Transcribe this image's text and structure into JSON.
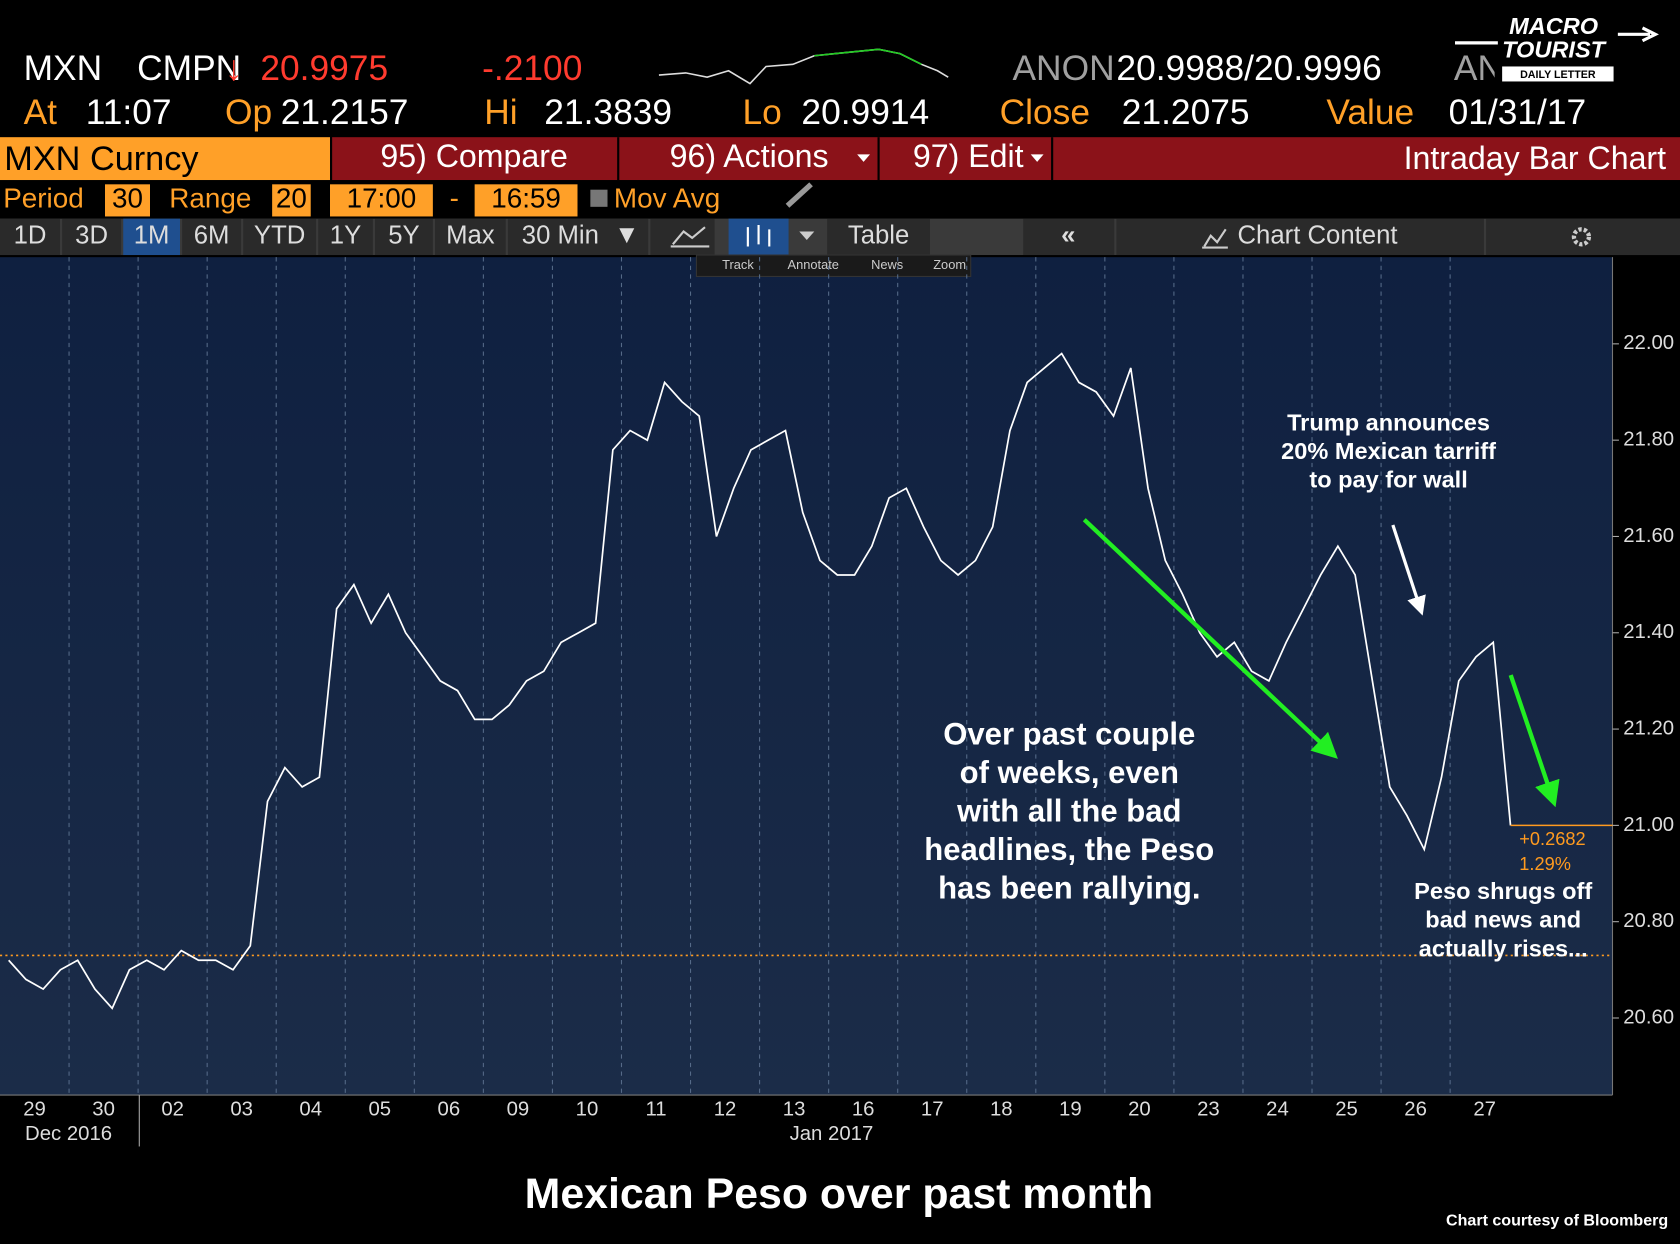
{
  "header": {
    "ticker": "MXN",
    "source": "CMPN",
    "arrow": "↓",
    "last": "20.9975",
    "change": "-.2100",
    "bid_source": "ANON",
    "bid_ask": "20.9988/20.9996",
    "ask_source": "ANON",
    "at_label": "At",
    "time": "11:07",
    "open_label": "Op",
    "open": "21.2157",
    "high_label": "Hi",
    "high": "21.3839",
    "low_label": "Lo",
    "low": "20.9914",
    "close_label": "Close",
    "close": "21.2075",
    "value_label": "Value",
    "value_date": "01/31/17"
  },
  "menu": {
    "security": "MXN Curncy",
    "items": [
      "95) Compare",
      "96) Actions",
      "97) Edit"
    ],
    "view": "Intraday Bar Chart"
  },
  "settings": {
    "period_label": "Period",
    "period": "30",
    "range_label": "Range",
    "range": "20",
    "start": "17:00",
    "separator": "-",
    "end": "16:59",
    "mov_avg": "Mov Avg"
  },
  "toolbar": {
    "ranges": [
      "1D",
      "3D",
      "1M",
      "6M",
      "YTD",
      "1Y",
      "5Y",
      "Max"
    ],
    "interval": "30 Min",
    "table": "Table",
    "chart_content": "Chart Content"
  },
  "tools": [
    "Track",
    "Annotate",
    "News",
    "Zoom"
  ],
  "logo": [
    "MACRO",
    "TOURIST",
    "DAILY LETTER"
  ],
  "chart_data": {
    "type": "line",
    "color": "#ffffff",
    "categories": [
      null,
      "29",
      null,
      null,
      null,
      "30",
      null,
      null,
      null,
      "02",
      null,
      null,
      null,
      "03",
      null,
      null,
      null,
      "04",
      null,
      null,
      null,
      "05",
      null,
      null,
      null,
      "06",
      null,
      null,
      null,
      "09",
      null,
      null,
      null,
      "10",
      null,
      null,
      null,
      "11",
      null,
      null,
      null,
      "12",
      null,
      null,
      null,
      "13",
      null,
      null,
      null,
      "16",
      null,
      null,
      null,
      "17",
      null,
      null,
      null,
      "18",
      null,
      null,
      null,
      "19",
      null,
      null,
      null,
      "20",
      null,
      null,
      null,
      "23",
      null,
      null,
      null,
      "24",
      null,
      null,
      null,
      "25",
      null,
      null,
      null,
      "26",
      null,
      null,
      null,
      "27",
      null,
      null
    ],
    "values": [
      20.72,
      20.68,
      20.66,
      20.7,
      20.72,
      20.66,
      20.62,
      20.7,
      20.72,
      20.7,
      20.74,
      20.72,
      20.72,
      20.7,
      20.75,
      21.05,
      21.12,
      21.08,
      21.1,
      21.45,
      21.5,
      21.42,
      21.48,
      21.4,
      21.35,
      21.3,
      21.28,
      21.22,
      21.22,
      21.25,
      21.3,
      21.32,
      21.38,
      21.4,
      21.42,
      21.78,
      21.82,
      21.8,
      21.92,
      21.88,
      21.85,
      21.6,
      21.7,
      21.78,
      21.8,
      21.82,
      21.65,
      21.55,
      21.52,
      21.52,
      21.58,
      21.68,
      21.7,
      21.62,
      21.55,
      21.52,
      21.55,
      21.62,
      21.82,
      21.92,
      21.95,
      21.98,
      21.92,
      21.9,
      21.85,
      21.95,
      21.7,
      21.55,
      21.48,
      21.4,
      21.35,
      21.38,
      21.32,
      21.3,
      21.38,
      21.45,
      21.52,
      21.58,
      21.52,
      21.3,
      21.08,
      21.02,
      20.95,
      21.1,
      21.3,
      21.35,
      21.38,
      21.0
    ],
    "x_group_labels": [
      "Dec 2016",
      "Jan 2017"
    ],
    "ylim": [
      20.44,
      22.18
    ],
    "yticks": [
      {
        "value": 20.6,
        "label": "20.60"
      },
      {
        "value": 20.8,
        "label": "20.80"
      },
      {
        "value": 21,
        "label": "21.00"
      },
      {
        "value": 21.2,
        "label": "21.20"
      },
      {
        "value": 21.4,
        "label": "21.40"
      },
      {
        "value": 21.6,
        "label": "21.60"
      },
      {
        "value": 21.8,
        "label": "21.80"
      },
      {
        "value": 22,
        "label": "22.00"
      }
    ],
    "reference_line": 20.73,
    "reference_color": "#ff9a1f",
    "change_labels": [
      "+0.2682",
      "1.29%"
    ],
    "annotations": [
      {
        "lines": [
          "Trump announces",
          "20% Mexican tarriff",
          "to pay for wall"
        ]
      },
      {
        "lines": [
          "Over past couple",
          "of weeks, even",
          "with all the bad",
          "headlines, the Peso",
          "has been rallying."
        ]
      },
      {
        "lines": [
          "Peso shrugs off",
          "bad news and",
          "actually rises..."
        ]
      }
    ]
  },
  "caption": "Mexican Peso over past month",
  "credit": "Chart courtesy of Bloomberg"
}
